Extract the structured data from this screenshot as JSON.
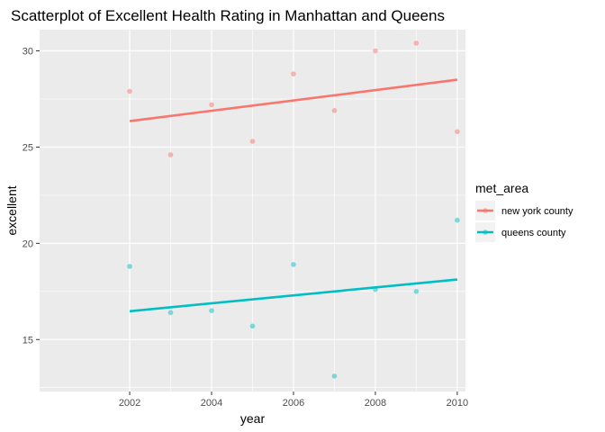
{
  "chart_data": {
    "type": "scatter",
    "title": "Scatterplot of Excellent Health Rating in Manhattan and Queens",
    "xlabel": "year",
    "ylabel": "excellent",
    "xlim": [
      1999.8,
      2010.2
    ],
    "ylim": [
      12.3,
      31.1
    ],
    "x_ticks": [
      2002,
      2004,
      2006,
      2008,
      2010
    ],
    "x_minor_ticks": [
      2003,
      2005,
      2007,
      2009
    ],
    "y_ticks": [
      15,
      20,
      25,
      30
    ],
    "y_minor_ticks": [
      12.5,
      17.5,
      22.5,
      27.5
    ],
    "panel_background": "#ebebeb",
    "grid_color": "#ffffff",
    "grid": true,
    "legend": {
      "title": "met_area",
      "position": "right"
    },
    "series": [
      {
        "name": "new york county",
        "color": "#f8766d",
        "x": [
          2002,
          2003,
          2004,
          2005,
          2006,
          2007,
          2008,
          2009,
          2010
        ],
        "y": [
          27.9,
          24.6,
          27.2,
          25.3,
          28.8,
          26.9,
          30.0,
          30.4,
          25.8
        ],
        "trend": [
          [
            2002,
            26.35
          ],
          [
            2010,
            28.5
          ]
        ]
      },
      {
        "name": "queens county",
        "color": "#00bfc4",
        "x": [
          2002,
          2003,
          2004,
          2005,
          2006,
          2007,
          2008,
          2009,
          2010
        ],
        "y": [
          18.8,
          16.4,
          16.5,
          15.7,
          18.9,
          13.1,
          17.6,
          17.5,
          21.2
        ],
        "trend": [
          [
            2002,
            16.47
          ],
          [
            2010,
            18.12
          ]
        ]
      }
    ]
  }
}
